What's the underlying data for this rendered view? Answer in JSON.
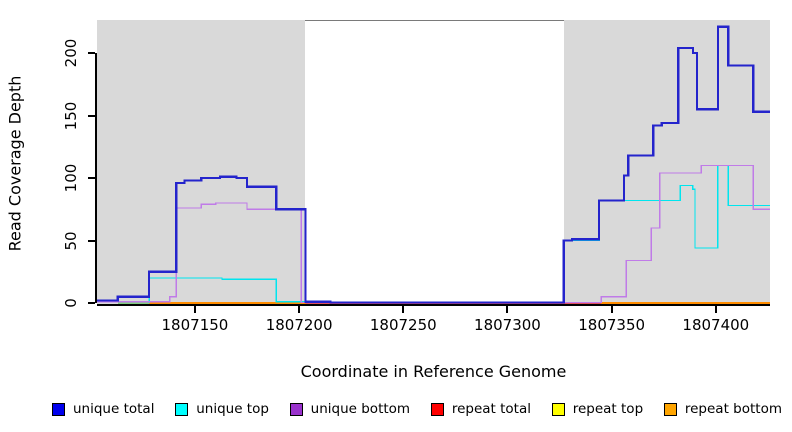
{
  "chart_data": {
    "type": "line",
    "step": "after",
    "title": "",
    "xlabel": "Coordinate in Reference Genome",
    "ylabel": "Read Coverage Depth",
    "xlim": [
      1807103,
      1807426
    ],
    "ylim": [
      0,
      226.4
    ],
    "x_ticks": [
      1807150,
      1807200,
      1807250,
      1807300,
      1807350,
      1807400
    ],
    "y_ticks": [
      0,
      50,
      100,
      150,
      200
    ],
    "grid": "off",
    "legend_position": "bottom",
    "background_regions": [
      {
        "name": "repeat-region-left",
        "x0": 1807103,
        "x1": 1807203,
        "color": "#d9d9d9"
      },
      {
        "name": "repeat-region-right",
        "x0": 1807327,
        "x1": 1807426,
        "color": "#d9d9d9"
      }
    ],
    "series": [
      {
        "name": "repeat top",
        "color": "#7fce7f",
        "width": 1.5,
        "segments": [
          [
            [
              1807113,
              0
            ],
            [
              1807128,
              0
            ]
          ]
        ]
      },
      {
        "name": "repeat total",
        "color": "#e05060",
        "width": 1.5,
        "segments": [
          [
            [
              1807203,
              0
            ],
            [
              1807345,
              0
            ]
          ]
        ]
      },
      {
        "name": "repeat bottom",
        "color": "#ff8c00",
        "width": 1.6,
        "segments": [
          [
            [
              1807128,
              0
            ],
            [
              1807203,
              0
            ]
          ],
          [
            [
              1807345,
              0
            ],
            [
              1807426,
              0
            ]
          ]
        ]
      },
      {
        "name": "unique top",
        "color": "#00e5ee",
        "width": 1.4,
        "segments": [
          [
            [
              1807128,
              0
            ],
            [
              1807128,
              20
            ],
            [
              1807163,
              19
            ],
            [
              1807189,
              1
            ],
            [
              1807203,
              0.4
            ],
            [
              1807327,
              50
            ],
            [
              1807344,
              82
            ],
            [
              1807383,
              94
            ],
            [
              1807389,
              91
            ],
            [
              1807390,
              44
            ],
            [
              1807401,
              110
            ],
            [
              1807406,
              78
            ],
            [
              1807426,
              78
            ]
          ]
        ]
      },
      {
        "name": "unique bottom",
        "color": "#c07be8",
        "width": 1.4,
        "segments": [
          [
            [
              1807103,
              1
            ],
            [
              1807138,
              5
            ],
            [
              1807141,
              76
            ],
            [
              1807153,
              79
            ],
            [
              1807160,
              80
            ],
            [
              1807175,
              75
            ],
            [
              1807201,
              0.4
            ],
            [
              1807345,
              5
            ],
            [
              1807357,
              34
            ],
            [
              1807369,
              60
            ],
            [
              1807373,
              104
            ],
            [
              1807393,
              110
            ],
            [
              1807418,
              75
            ],
            [
              1807426,
              75
            ]
          ]
        ]
      },
      {
        "name": "unique total",
        "color": "#2424cc",
        "width": 2.2,
        "segments": [
          [
            [
              1807103,
              2
            ],
            [
              1807113,
              5
            ],
            [
              1807128,
              25
            ],
            [
              1807141,
              96
            ],
            [
              1807145,
              98
            ],
            [
              1807153,
              100
            ],
            [
              1807162,
              101
            ],
            [
              1807170,
              100
            ],
            [
              1807175,
              93
            ],
            [
              1807189,
              75
            ],
            [
              1807203,
              1
            ],
            [
              1807215,
              0.4
            ],
            [
              1807327,
              50
            ],
            [
              1807331,
              51
            ],
            [
              1807344,
              82
            ],
            [
              1807356,
              102
            ],
            [
              1807358,
              118
            ],
            [
              1807370,
              142
            ],
            [
              1807374,
              144
            ],
            [
              1807382,
              204
            ],
            [
              1807389,
              200
            ],
            [
              1807391,
              155
            ],
            [
              1807401,
              221
            ],
            [
              1807406,
              190
            ],
            [
              1807418,
              153
            ],
            [
              1807426,
              153
            ]
          ]
        ]
      }
    ]
  },
  "legend": {
    "items": [
      {
        "label": "unique total",
        "color": "#0000ee"
      },
      {
        "label": "unique top",
        "color": "#00ffff"
      },
      {
        "label": "unique bottom",
        "color": "#9932cc"
      },
      {
        "label": "repeat total",
        "color": "#ff0000"
      },
      {
        "label": "repeat top",
        "color": "#ffff00"
      },
      {
        "label": "repeat bottom",
        "color": "#ffa500"
      }
    ]
  }
}
